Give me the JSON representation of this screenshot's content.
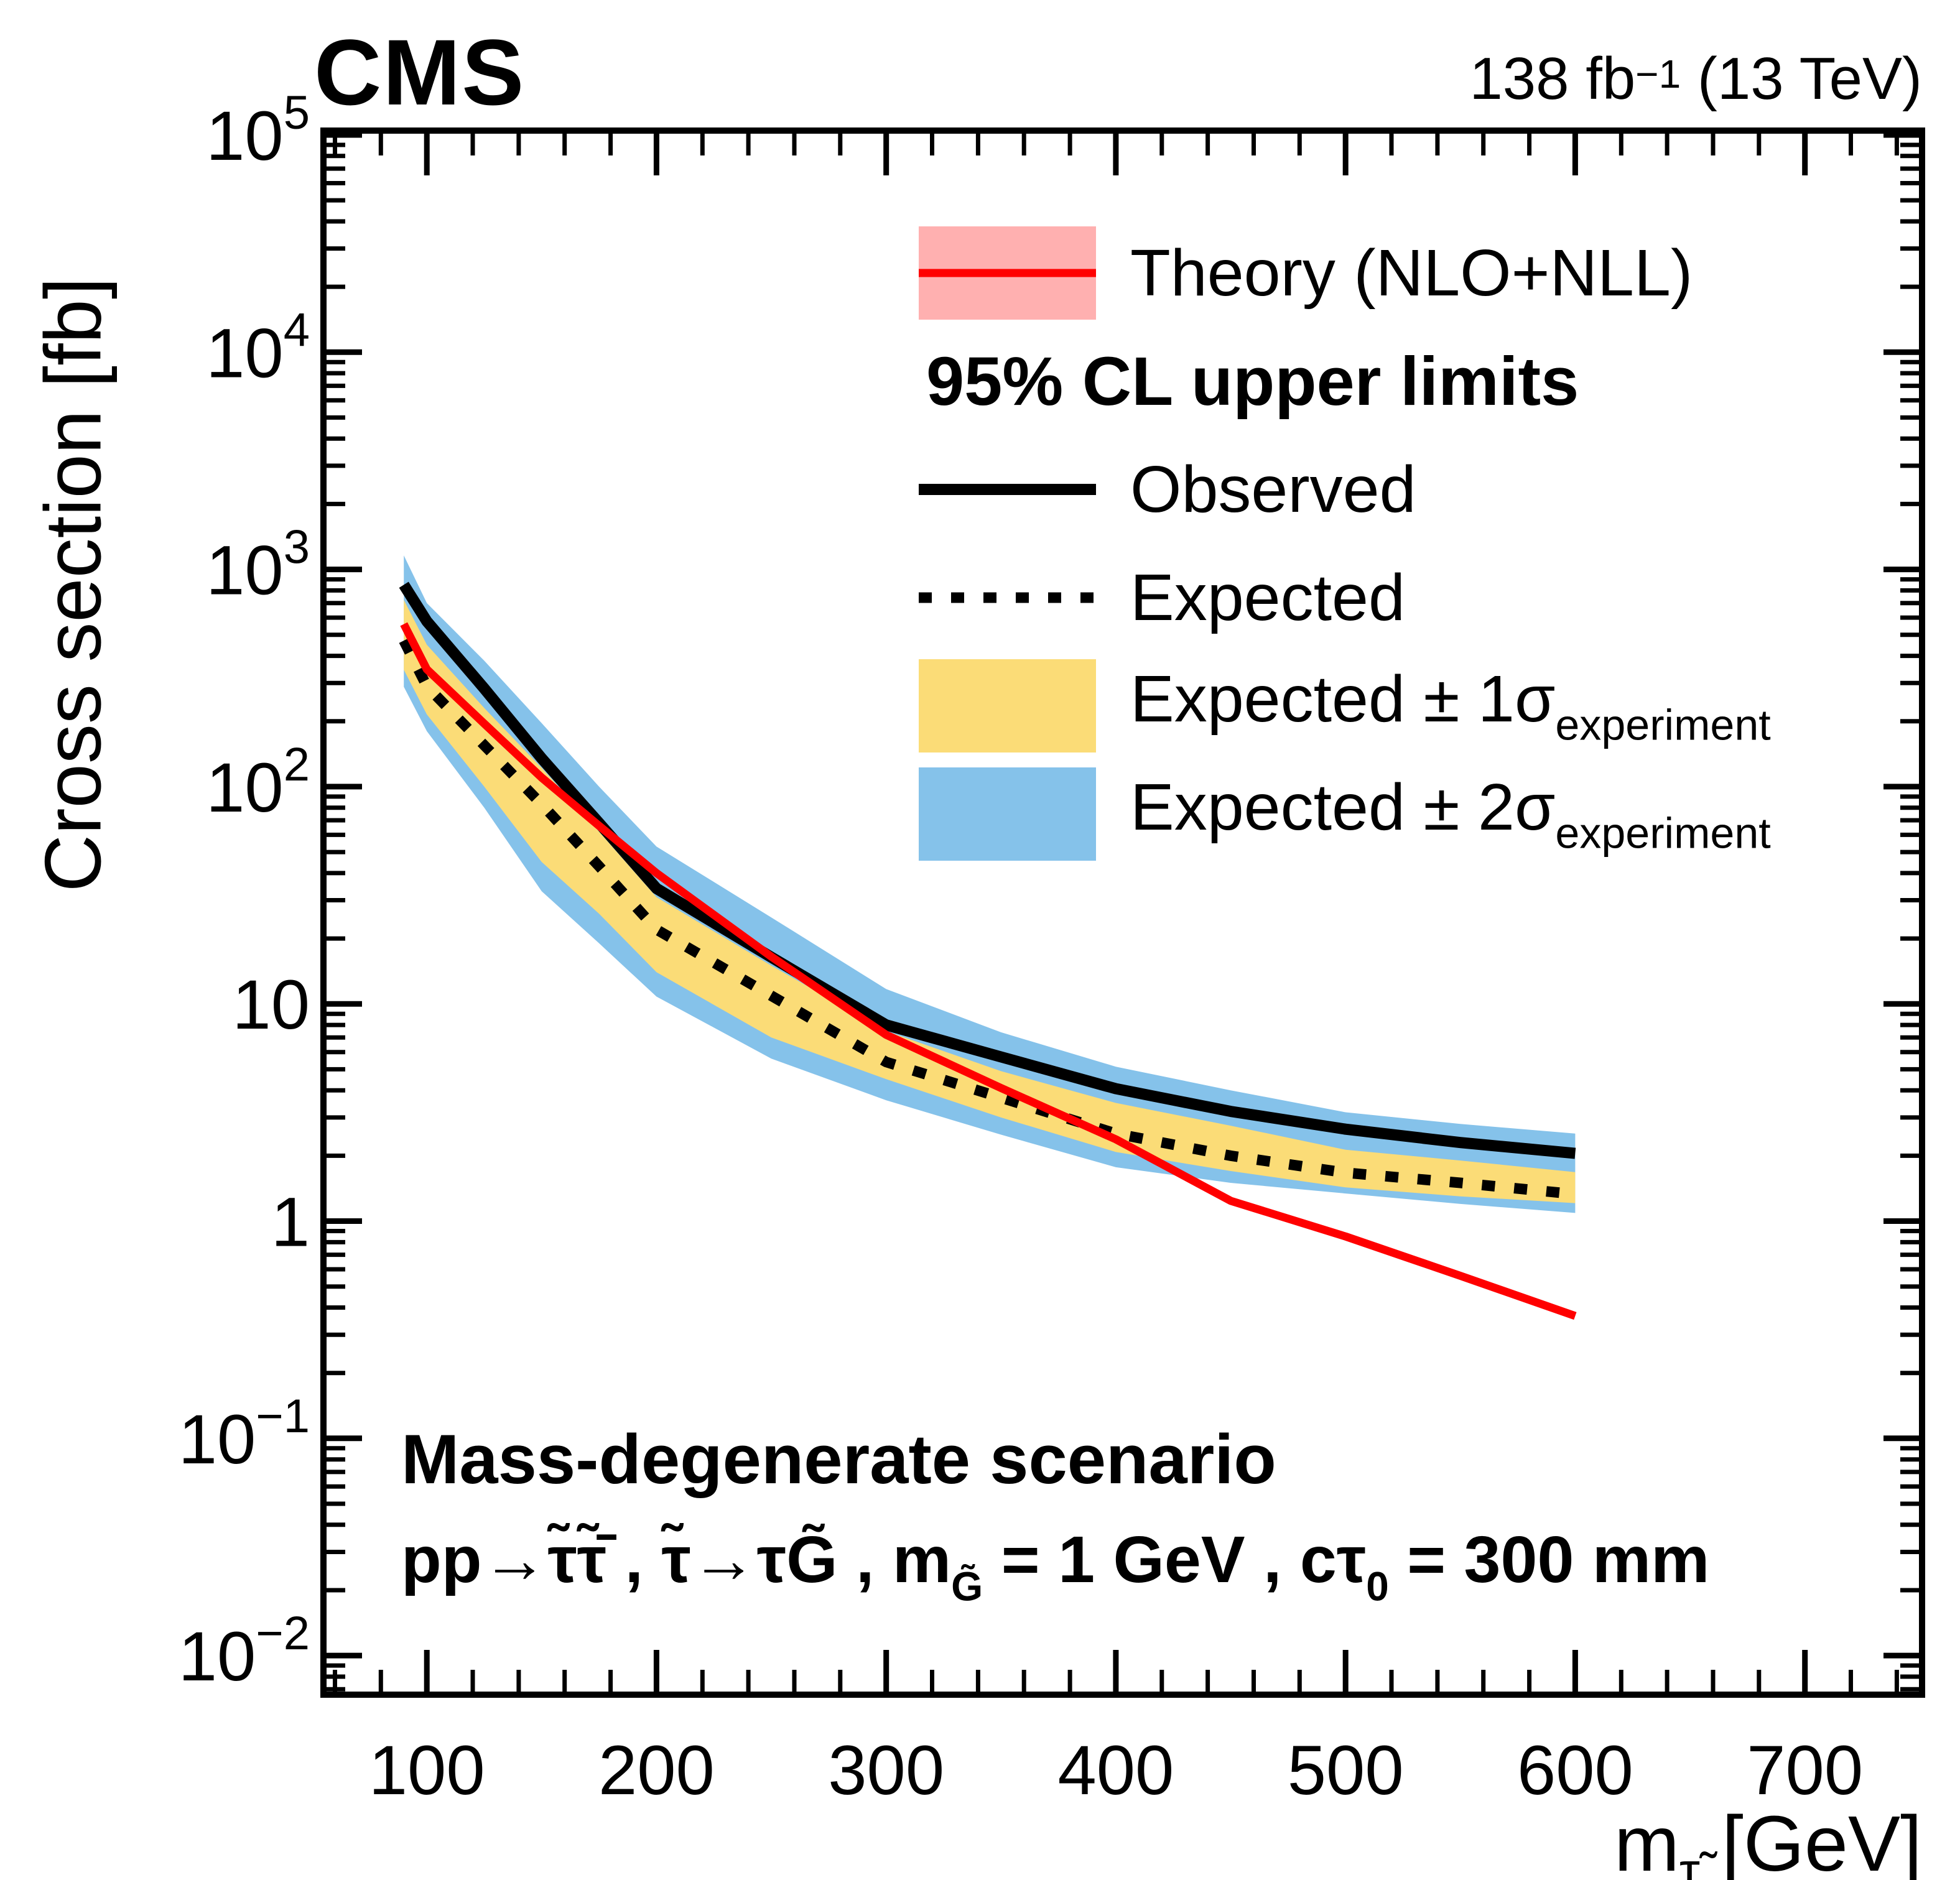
{
  "header": {
    "experiment": "CMS",
    "lumi_prefix": "138 fb",
    "lumi_sup": "−1",
    "lumi_suffix": " (13 TeV)"
  },
  "axes": {
    "y_title": "Cross section [fb]",
    "x_title_main": "m",
    "x_title_sub": "τ̃",
    "x_title_unit": " [GeV]"
  },
  "legend": {
    "theory_label": "Theory (NLO+NLL)",
    "header": "95% CL upper limits",
    "observed_label": "Observed",
    "expected_label": "Expected",
    "band1_label": "Expected ± 1σ",
    "band1_sub": "experiment",
    "band2_label": "Expected ± 2σ",
    "band2_sub": "experiment"
  },
  "annotations": {
    "scenario": "Mass-degenerate scenario",
    "process_p1": "pp→τ̃τ̃̄ ,   τ̃→τG̃ , m",
    "process_sub1": "G̃",
    "process_p2": " = 1 GeV , cτ",
    "process_sub2": "0",
    "process_p3": " = 300 mm"
  },
  "colors": {
    "band_1sigma": "#FBDC77",
    "band_2sigma": "#85C2EA",
    "theory_line": "#FF0000",
    "theory_band_legend": "#FFB0B0",
    "observed": "#000000",
    "expected": "#000000",
    "frame": "#000000"
  },
  "chart_data": {
    "type": "line",
    "title": "",
    "xlabel": "m_stau [GeV]",
    "ylabel": "Cross section [fb]",
    "legend_position": "top-right-inside",
    "grid": false,
    "ylog": true,
    "xlim": [
      55,
      751
    ],
    "ylim_log": [
      -2.18,
      5.02
    ],
    "x_major_ticks": [
      100,
      200,
      300,
      400,
      500,
      600,
      700
    ],
    "x_minor_step": 20,
    "y_decades": [
      5,
      4,
      3,
      2,
      1,
      0,
      -1,
      -2
    ],
    "x": [
      90,
      100,
      125,
      150,
      175,
      200,
      250,
      300,
      350,
      400,
      450,
      500,
      550,
      600
    ],
    "series": [
      {
        "name": "Observed",
        "values": [
          850,
          577,
          283,
          135,
          68,
          34,
          16.4,
          8.0,
          5.7,
          4.07,
          3.2,
          2.65,
          2.3,
          2.05
        ]
      },
      {
        "name": "Expected",
        "values": [
          470,
          290,
          155,
          83,
          43,
          22,
          10.9,
          5.4,
          3.7,
          2.53,
          2.0,
          1.67,
          1.5,
          1.33
        ]
      },
      {
        "name": "Expected +1sigma",
        "values": [
          724,
          450,
          230,
          122,
          62,
          31,
          15,
          7.5,
          4.9,
          3.5,
          2.75,
          2.13,
          1.9,
          1.68
        ]
      },
      {
        "name": "Expected -1sigma",
        "values": [
          345,
          215,
          100,
          45,
          26,
          14,
          7.0,
          4.5,
          3.0,
          2.08,
          1.7,
          1.43,
          1.3,
          1.21
        ]
      },
      {
        "name": "Expected +2sigma",
        "values": [
          1160,
          700,
          380,
          196,
          100,
          53,
          25,
          11.7,
          7.4,
          5.14,
          4.0,
          3.17,
          2.8,
          2.53
        ]
      },
      {
        "name": "Expected -2sigma",
        "values": [
          288,
          180,
          80,
          33,
          19,
          10.8,
          5.6,
          3.6,
          2.5,
          1.77,
          1.5,
          1.34,
          1.2,
          1.09
        ]
      },
      {
        "name": "Theory (NLO+NLL)",
        "values": [
          560,
          347,
          195,
          110,
          66,
          40,
          16.5,
          7.2,
          4.1,
          2.38,
          1.24,
          0.85,
          0.56,
          0.366
        ]
      }
    ]
  }
}
